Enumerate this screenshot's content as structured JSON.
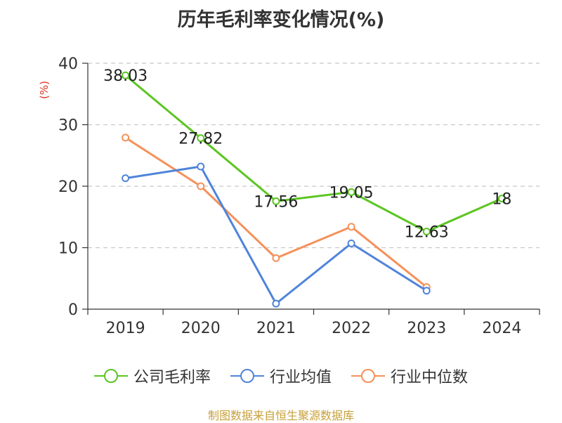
{
  "title": "历年毛利率变化情况(%)",
  "source": "制图数据来自恒生聚源数据库",
  "chart_data": {
    "type": "line",
    "title": "历年毛利率变化情况(%)",
    "ylabel": "(%)",
    "xlabel": "",
    "ylim": [
      0,
      40
    ],
    "yticks": [
      0,
      10,
      20,
      30,
      40
    ],
    "grid": true,
    "legend": "bottom",
    "categories": [
      "2019",
      "2020",
      "2021",
      "2022",
      "2023",
      "2024"
    ],
    "series": [
      {
        "name": "公司毛利率",
        "color": "#5cc522",
        "values": [
          38.03,
          27.82,
          17.56,
          19.05,
          12.63,
          18
        ],
        "labels": [
          "38.03",
          "27.82",
          "17.56",
          "19.05",
          "12.63",
          "18"
        ]
      },
      {
        "name": "行业均值",
        "color": "#4f84da",
        "values": [
          21.3,
          23.2,
          0.9,
          10.7,
          3.0,
          null
        ]
      },
      {
        "name": "行业中位数",
        "color": "#f5915a",
        "values": [
          27.9,
          20.0,
          8.3,
          13.4,
          3.6,
          null
        ]
      }
    ]
  }
}
